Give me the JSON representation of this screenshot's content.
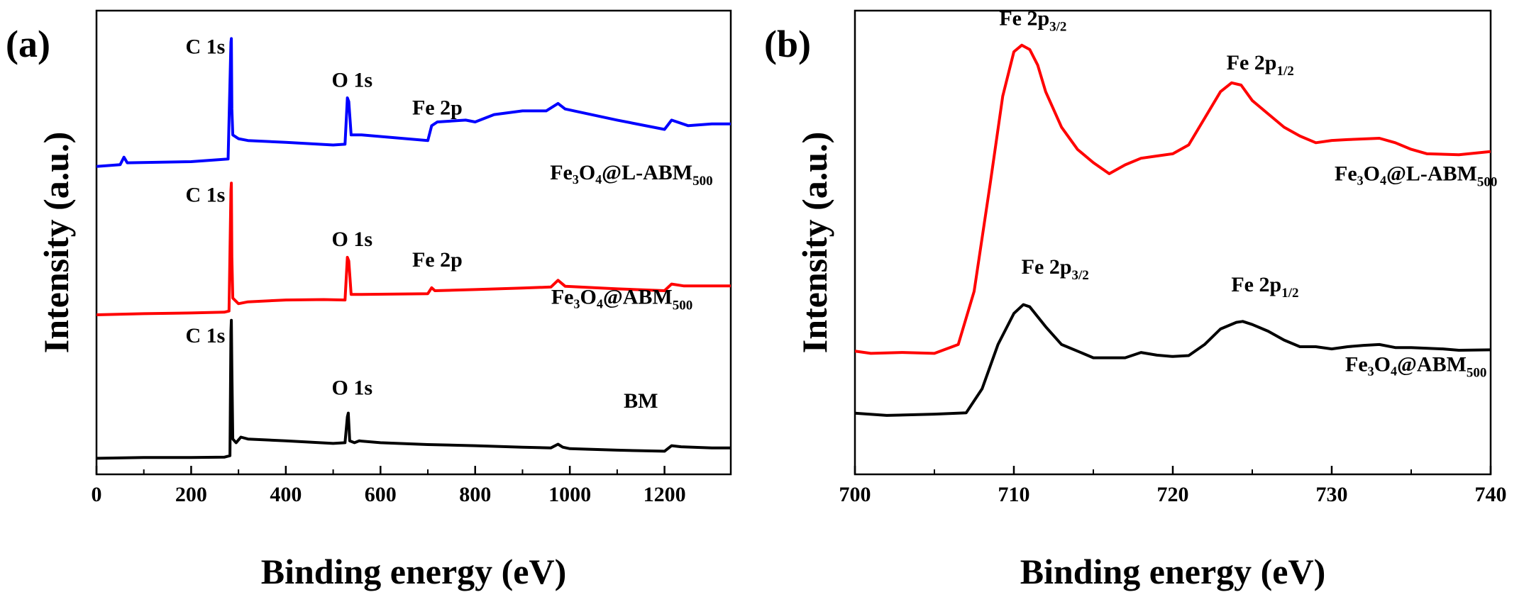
{
  "colors": {
    "black": "#000000",
    "red": "#ff0000",
    "blue": "#0000ff"
  },
  "chart_data": [
    {
      "id": "a",
      "type": "line",
      "panel_label": "(a)",
      "xlabel": "Binding energy (eV)",
      "ylabel": "Intensity (a.u.)",
      "xlim": [
        0,
        1340
      ],
      "ylim": [
        0,
        100
      ],
      "xticks": [
        0,
        200,
        400,
        600,
        800,
        1000,
        1200
      ],
      "xtick_labels": [
        "0",
        "200",
        "400",
        "600",
        "800",
        "1000",
        "1200"
      ],
      "y_tick_labels": false,
      "series": [
        {
          "name": "BM",
          "legend": {
            "main": "BM"
          },
          "color": "#000000",
          "label_at": {
            "x": 1150,
            "y": 14.4
          },
          "points": [
            [
              0,
              0.8
            ],
            [
              100,
              1
            ],
            [
              200,
              1
            ],
            [
              270,
              1.1
            ],
            [
              282,
              1.5
            ],
            [
              284,
              35
            ],
            [
              285,
              38
            ],
            [
              286,
              25
            ],
            [
              288,
              6
            ],
            [
              295,
              5
            ],
            [
              305,
              6.5
            ],
            [
              320,
              6
            ],
            [
              400,
              5.5
            ],
            [
              500,
              4.8
            ],
            [
              525,
              5
            ],
            [
              530,
              12
            ],
            [
              532,
              13
            ],
            [
              535,
              5.5
            ],
            [
              545,
              5
            ],
            [
              555,
              5.5
            ],
            [
              600,
              5
            ],
            [
              700,
              4.5
            ],
            [
              800,
              4.2
            ],
            [
              900,
              3.8
            ],
            [
              960,
              3.6
            ],
            [
              975,
              4.6
            ],
            [
              985,
              3.8
            ],
            [
              1000,
              3.4
            ],
            [
              1100,
              3
            ],
            [
              1200,
              2.7
            ],
            [
              1215,
              4.2
            ],
            [
              1235,
              3.9
            ],
            [
              1300,
              3.6
            ],
            [
              1340,
              3.6
            ]
          ],
          "peaks": [
            {
              "text": "C 1s",
              "x": 230,
              "y": 32
            },
            {
              "text": "O 1s",
              "x": 540,
              "y": 18
            }
          ]
        },
        {
          "name": "Fe3O4@ABM500",
          "legend": {
            "main": "Fe₃O₄@ABM",
            "sub": "500"
          },
          "color": "#ff0000",
          "label_at": {
            "x": 1110,
            "y": 42.5
          },
          "points": [
            [
              0,
              39.5
            ],
            [
              100,
              39.8
            ],
            [
              200,
              40
            ],
            [
              270,
              40.2
            ],
            [
              280,
              40.5
            ],
            [
              284,
              73
            ],
            [
              285,
              75
            ],
            [
              286,
              55
            ],
            [
              288,
              44
            ],
            [
              300,
              42.5
            ],
            [
              320,
              43
            ],
            [
              400,
              43.5
            ],
            [
              480,
              43.6
            ],
            [
              525,
              43.5
            ],
            [
              530,
              55
            ],
            [
              533,
              54
            ],
            [
              538,
              45
            ],
            [
              560,
              45
            ],
            [
              700,
              45.2
            ],
            [
              708,
              46.8
            ],
            [
              715,
              46
            ],
            [
              800,
              46.3
            ],
            [
              900,
              46.7
            ],
            [
              960,
              47
            ],
            [
              975,
              48.8
            ],
            [
              990,
              47.2
            ],
            [
              1100,
              46.5
            ],
            [
              1200,
              46
            ],
            [
              1215,
              47.8
            ],
            [
              1240,
              47.3
            ],
            [
              1340,
              47.3
            ]
          ],
          "peaks": [
            {
              "text": "C 1s",
              "x": 230,
              "y": 70
            },
            {
              "text": "O 1s",
              "x": 540,
              "y": 58
            },
            {
              "text": "Fe 2p",
              "x": 720,
              "y": 52.5
            }
          ]
        },
        {
          "name": "Fe3O4@L-ABM500",
          "legend": {
            "main": "Fe₃O₄@L-ABM",
            "sub": "500"
          },
          "color": "#0000ff",
          "label_at": {
            "x": 1130,
            "y": 76
          },
          "points": [
            [
              0,
              79.5
            ],
            [
              50,
              80
            ],
            [
              58,
              82
            ],
            [
              65,
              80.5
            ],
            [
              200,
              80.8
            ],
            [
              278,
              81.5
            ],
            [
              284,
              113
            ],
            [
              285,
              114
            ],
            [
              286,
              95
            ],
            [
              288,
              88
            ],
            [
              300,
              87
            ],
            [
              320,
              86.5
            ],
            [
              400,
              86
            ],
            [
              500,
              85.3
            ],
            [
              525,
              85.5
            ],
            [
              530,
              98
            ],
            [
              533,
              97
            ],
            [
              538,
              88
            ],
            [
              560,
              88
            ],
            [
              700,
              86.5
            ],
            [
              708,
              90.5
            ],
            [
              720,
              91.5
            ],
            [
              780,
              92
            ],
            [
              800,
              91.5
            ],
            [
              840,
              93.5
            ],
            [
              900,
              94.5
            ],
            [
              950,
              94.5
            ],
            [
              975,
              96.5
            ],
            [
              990,
              95
            ],
            [
              1100,
              92
            ],
            [
              1200,
              89.5
            ],
            [
              1215,
              92
            ],
            [
              1250,
              90.5
            ],
            [
              1300,
              91
            ],
            [
              1340,
              91
            ]
          ],
          "peaks": [
            {
              "text": "C 1s",
              "x": 230,
              "y": 110
            },
            {
              "text": "O 1s",
              "x": 540,
              "y": 101
            },
            {
              "text": "Fe 2p",
              "x": 720,
              "y": 93.5
            }
          ]
        }
      ]
    },
    {
      "id": "b",
      "type": "line",
      "panel_label": "(b)",
      "xlabel": "Binding energy (eV)",
      "ylabel": "Intensity (a.u.)",
      "xlim": [
        700,
        740
      ],
      "ylim": [
        0,
        100
      ],
      "xticks": [
        700,
        710,
        720,
        730,
        740
      ],
      "xtick_labels": [
        "700",
        "710",
        "720",
        "730",
        "740"
      ],
      "y_tick_labels": false,
      "series": [
        {
          "name": "Fe3O4@ABM500",
          "legend": {
            "main": "Fe₃O₄@ABM",
            "sub": "500"
          },
          "color": "#000000",
          "label_at": {
            "x": 735.3,
            "y": 20
          },
          "points": [
            [
              700,
              10.5
            ],
            [
              702,
              10
            ],
            [
              705,
              10.3
            ],
            [
              707,
              10.6
            ],
            [
              708,
              16
            ],
            [
              709,
              26
            ],
            [
              710,
              33
            ],
            [
              710.6,
              35
            ],
            [
              711,
              34.5
            ],
            [
              712,
              30
            ],
            [
              713,
              26
            ],
            [
              714,
              24.5
            ],
            [
              715,
              23
            ],
            [
              716,
              23
            ],
            [
              717,
              23
            ],
            [
              718,
              24.2
            ],
            [
              719,
              23.6
            ],
            [
              720,
              23.3
            ],
            [
              721,
              23.5
            ],
            [
              722,
              26
            ],
            [
              723,
              29.5
            ],
            [
              724,
              31
            ],
            [
              724.4,
              31.2
            ],
            [
              725,
              30.5
            ],
            [
              726,
              29
            ],
            [
              727,
              27
            ],
            [
              728,
              25.5
            ],
            [
              729,
              25.5
            ],
            [
              730,
              25
            ],
            [
              731,
              25.5
            ],
            [
              732,
              25.8
            ],
            [
              733,
              26
            ],
            [
              734,
              25.3
            ],
            [
              735,
              25.3
            ],
            [
              737,
              25
            ],
            [
              738,
              24.7
            ],
            [
              740,
              24.8
            ]
          ],
          "peaks": [
            {
              "text": "Fe 2p",
              "sub": "3/2",
              "x": 712.6,
              "y": 42
            },
            {
              "text": "Fe 2p",
              "sub": "1/2",
              "x": 725.8,
              "y": 38
            }
          ]
        },
        {
          "name": "Fe3O4@L-ABM500",
          "legend": {
            "main": "Fe₃O₄@L-ABM",
            "sub": "500"
          },
          "color": "#ff0000",
          "label_at": {
            "x": 735.3,
            "y": 63
          },
          "points": [
            [
              700,
              24.5
            ],
            [
              701,
              24
            ],
            [
              703,
              24.2
            ],
            [
              705,
              24
            ],
            [
              706.5,
              26
            ],
            [
              707.5,
              38
            ],
            [
              708.5,
              62
            ],
            [
              709.3,
              82
            ],
            [
              710,
              92
            ],
            [
              710.5,
              93.5
            ],
            [
              711,
              92.5
            ],
            [
              711.5,
              89
            ],
            [
              712,
              83
            ],
            [
              713,
              75
            ],
            [
              714,
              70
            ],
            [
              715,
              67
            ],
            [
              716,
              64.5
            ],
            [
              717,
              66.5
            ],
            [
              718,
              68
            ],
            [
              719,
              68.5
            ],
            [
              720,
              69
            ],
            [
              721,
              71
            ],
            [
              722,
              77
            ],
            [
              723,
              83
            ],
            [
              723.7,
              85
            ],
            [
              724.3,
              84.5
            ],
            [
              725,
              81
            ],
            [
              726,
              78
            ],
            [
              727,
              75
            ],
            [
              728,
              73
            ],
            [
              729,
              71.5
            ],
            [
              730,
              72
            ],
            [
              731,
              72.2
            ],
            [
              733,
              72.5
            ],
            [
              734,
              71.5
            ],
            [
              735,
              70
            ],
            [
              736,
              69
            ],
            [
              738,
              68.8
            ],
            [
              740,
              69.5
            ]
          ],
          "peaks": [
            {
              "text": "Fe 2p",
              "sub": "3/2",
              "x": 711.2,
              "y": 98
            },
            {
              "text": "Fe 2p",
              "sub": "1/2",
              "x": 725.5,
              "y": 88
            }
          ]
        }
      ]
    }
  ]
}
